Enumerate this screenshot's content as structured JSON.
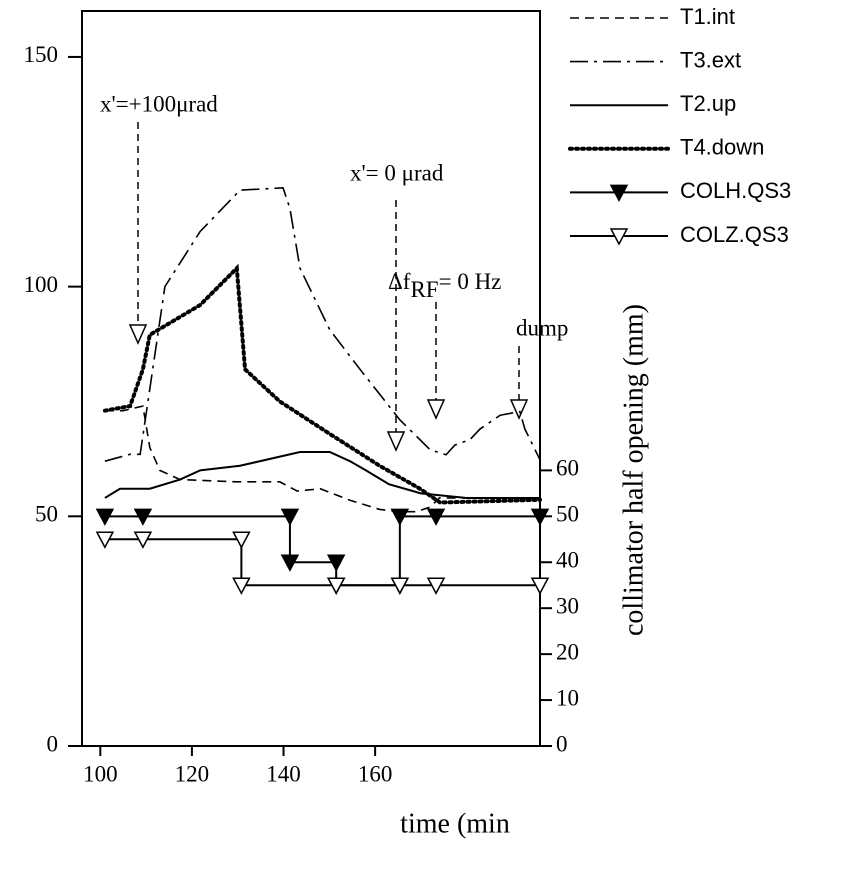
{
  "chart_data": {
    "type": "line",
    "x_label": "time (min",
    "y2_label": "collimator half opening (mm)",
    "xlim": [
      96,
      196
    ],
    "xticks": [
      100,
      120,
      140,
      160
    ],
    "ylim": [
      0,
      160
    ],
    "yticks": [
      0,
      50,
      100,
      150
    ],
    "y2lim": [
      0,
      160
    ],
    "y2ticks": [
      0,
      10,
      20,
      30,
      40,
      50,
      60
    ],
    "legend": "top-right",
    "series": [
      {
        "name": "T1.int",
        "color": "#000",
        "style": "dashed",
        "x": [
          101,
          105,
          109.3,
          110.8,
          113,
          117.4,
          130,
          139.2,
          143,
          148,
          154.5,
          161,
          165.4,
          169,
          172,
          174,
          176,
          196
        ],
        "values": [
          73,
          73,
          74,
          65,
          60,
          58,
          57.5,
          57.5,
          55.5,
          56,
          53.5,
          51.5,
          51,
          51,
          52,
          54,
          54,
          54
        ]
      },
      {
        "name": "T3.ext",
        "color": "#000",
        "style": "dashdot",
        "x": [
          101,
          106.5,
          108.7,
          114.1,
          121.8,
          130.5,
          139.9,
          141.4,
          143.6,
          150.1,
          156.7,
          165.4,
          172,
          175.5,
          177.4,
          180.7,
          182.9,
          187.3,
          191.6,
          192.7,
          196
        ],
        "values": [
          62,
          63.5,
          63.5,
          100,
          112,
          121,
          121.5,
          117,
          104,
          90.6,
          82,
          71,
          64.5,
          63.4,
          65.5,
          66.7,
          69,
          72,
          72.8,
          69,
          62.3
        ]
      },
      {
        "name": "T2.up",
        "color": "#000",
        "style": "solid",
        "x": [
          101,
          104.3,
          110.8,
          117.4,
          121.8,
          130.5,
          139.2,
          143.6,
          150.1,
          154.5,
          158,
          163,
          170,
          180,
          196
        ],
        "values": [
          54,
          56,
          56,
          58,
          60,
          61,
          63,
          64,
          64,
          62,
          60,
          57,
          55,
          54,
          54
        ]
      },
      {
        "name": "T4.down",
        "color": "#000",
        "style": "dotted",
        "x": [
          101,
          106.5,
          109.3,
          110.8,
          121.8,
          129.8,
          131.6,
          139.2,
          150,
          161,
          169.8,
          174.2,
          196
        ],
        "values": [
          73,
          74,
          82,
          89.5,
          96,
          104,
          82,
          75,
          68,
          61,
          56,
          53,
          53.6
        ]
      },
      {
        "name": "COLH.QS3",
        "color": "#000",
        "style": "solid",
        "marker": "filled",
        "axis": "y2",
        "x": [
          101,
          109.3,
          141.4,
          141.4,
          151.5,
          151.5,
          165.4,
          165.4,
          173.3,
          196
        ],
        "values": [
          50,
          50,
          50,
          40,
          40,
          35,
          35,
          50,
          50,
          50
        ]
      },
      {
        "name": "COLZ.QS3",
        "color": "#000",
        "style": "solid",
        "marker": "open",
        "axis": "y2",
        "x": [
          101,
          109.3,
          130.8,
          130.8,
          151.5,
          165.4,
          173.3,
          196
        ],
        "values": [
          45,
          45,
          45,
          35,
          35,
          35,
          35,
          35
        ]
      }
    ],
    "annotations": [
      "x'=+100μrad",
      "x'= 0 μrad",
      "Δf",
      "RF",
      "= 0 Hz",
      "dump"
    ]
  }
}
